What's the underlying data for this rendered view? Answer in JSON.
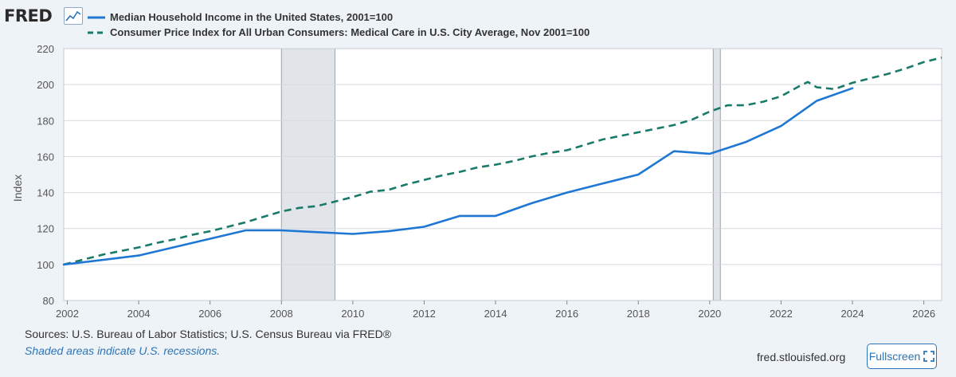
{
  "header": {
    "logo_text": "FRED",
    "logo_icon": "line-chart-icon"
  },
  "chart_data": {
    "type": "line",
    "ylabel": "Index",
    "xlim": [
      2001.9,
      2026.5
    ],
    "ylim": [
      80,
      220
    ],
    "x_ticks": [
      "2002",
      "2004",
      "2006",
      "2008",
      "2010",
      "2012",
      "2014",
      "2016",
      "2018",
      "2020",
      "2022",
      "2024",
      "2026"
    ],
    "y_ticks": [
      "80",
      "100",
      "120",
      "140",
      "160",
      "180",
      "200",
      "220"
    ],
    "grid": "horizontal",
    "legend_position": "top",
    "recessions": [
      {
        "start": 2008.0,
        "end": 2009.5
      },
      {
        "start": 2020.1,
        "end": 2020.3
      }
    ],
    "series": [
      {
        "name": "Median Household Income in the United States, 2001=100",
        "style": "solid",
        "color": "#1f77d4",
        "x": [
          2001.9,
          2004,
          2007,
          2008,
          2010,
          2011,
          2012,
          2013,
          2014,
          2015,
          2016,
          2017,
          2018,
          2019,
          2020,
          2021,
          2022,
          2023,
          2024
        ],
        "values": [
          100,
          105,
          119,
          119,
          117,
          118.5,
          121,
          127,
          127,
          134,
          140,
          145,
          150,
          163,
          161.5,
          168,
          177,
          191,
          198
        ]
      },
      {
        "name": "Consumer Price Index for All Urban Consumers: Medical Care in U.S. City Average, Nov 2001=100",
        "style": "dashed",
        "color": "#1a7a6a",
        "x": [
          2001.9,
          2002.5,
          2003,
          2003.5,
          2004,
          2004.5,
          2005,
          2005.5,
          2006,
          2006.5,
          2007,
          2007.5,
          2008,
          2008.5,
          2009,
          2009.5,
          2010,
          2010.5,
          2011,
          2011.5,
          2012,
          2012.5,
          2013,
          2013.5,
          2014,
          2014.5,
          2015,
          2015.5,
          2016,
          2016.5,
          2017,
          2017.5,
          2018,
          2018.5,
          2019,
          2019.5,
          2020,
          2020.5,
          2021,
          2021.5,
          2022,
          2022.5,
          2022.75,
          2023,
          2023.5,
          2024,
          2024.5,
          2025,
          2025.5,
          2026,
          2026.5
        ],
        "values": [
          100,
          103,
          105.5,
          107.5,
          109.5,
          112,
          114,
          116.5,
          118.5,
          121,
          123.5,
          126.5,
          129.5,
          131.5,
          132.5,
          135,
          137.5,
          140.5,
          141.5,
          144.5,
          147,
          149.5,
          151.5,
          154,
          155.5,
          157.5,
          160,
          162,
          163.5,
          166.5,
          169.5,
          171.5,
          173.5,
          175.5,
          177.5,
          180.5,
          185,
          188.5,
          188.5,
          190.5,
          193.5,
          199,
          201.5,
          198.5,
          197.5,
          201,
          203.5,
          206,
          209,
          212.5,
          215
        ]
      }
    ]
  },
  "footer": {
    "sources": "Sources: U.S. Bureau of Labor Statistics; U.S. Census Bureau via FRED®",
    "note": "Shaded areas indicate U.S. recessions.",
    "url": "fred.stlouisfed.org",
    "fullscreen_label": "Fullscreen",
    "fullscreen_icon": "expand-icon"
  }
}
